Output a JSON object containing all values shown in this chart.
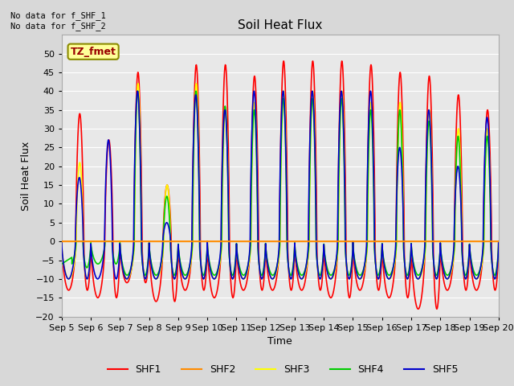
{
  "title": "Soil Heat Flux",
  "xlabel": "Time",
  "ylabel": "Soil Heat Flux",
  "ylim": [
    -20,
    55
  ],
  "yticks": [
    -20,
    -15,
    -10,
    -5,
    0,
    5,
    10,
    15,
    20,
    25,
    30,
    35,
    40,
    45,
    50
  ],
  "xlim": [
    0,
    15
  ],
  "xtick_labels": [
    "Sep 5",
    "Sep 6",
    "Sep 7",
    "Sep 8",
    "Sep 9",
    "Sep 10",
    "Sep 11",
    "Sep 12",
    "Sep 13",
    "Sep 14",
    "Sep 15",
    "Sep 16",
    "Sep 17",
    "Sep 18",
    "Sep 19",
    "Sep 20"
  ],
  "bg_color": "#e8e8e8",
  "grid_color": "#ffffff",
  "series_colors": {
    "SHF1": "#ff0000",
    "SHF2": "#ff8c00",
    "SHF3": "#ffff00",
    "SHF4": "#00cc00",
    "SHF5": "#0000cc"
  },
  "annotation_text": "No data for f_SHF_1\nNo data for f_SHF_2",
  "legend_box_label": "TZ_fmet",
  "legend_box_color": "#ffff99",
  "legend_box_edge": "#8b8b00",
  "shf1_peaks": [
    34,
    27,
    45,
    15,
    47,
    47,
    44,
    48,
    48,
    48,
    47,
    45,
    44,
    39,
    35
  ],
  "shf1_troughs": [
    -13,
    -15,
    -11,
    -16,
    -13,
    -15,
    -13,
    -13,
    -13,
    -15,
    -13,
    -15,
    -18,
    -13,
    -13
  ],
  "shf3_peaks": [
    21,
    0,
    42,
    15,
    42,
    35,
    37,
    40,
    40,
    40,
    37,
    37,
    35,
    30,
    30
  ],
  "shf3_troughs": [
    -10,
    0,
    -10,
    -10,
    -10,
    -10,
    -10,
    -10,
    -10,
    -10,
    -10,
    -10,
    -10,
    -10,
    -10
  ],
  "shf4_peaks": [
    0,
    0,
    40,
    12,
    40,
    36,
    35,
    38,
    38,
    38,
    35,
    35,
    32,
    28,
    28
  ],
  "shf4_troughs": [
    -7,
    -6,
    -9,
    -9,
    -9,
    -9,
    -9,
    -9,
    -9,
    -9,
    -9,
    -9,
    -9,
    -9,
    -9
  ],
  "shf5_peaks": [
    17,
    27,
    40,
    5,
    39,
    35,
    40,
    40,
    40,
    40,
    40,
    25,
    35,
    20,
    33
  ],
  "shf5_troughs": [
    -10,
    -10,
    -10,
    -10,
    -10,
    -10,
    -10,
    -10,
    -10,
    -10,
    -10,
    -10,
    -10,
    -10,
    -10
  ]
}
